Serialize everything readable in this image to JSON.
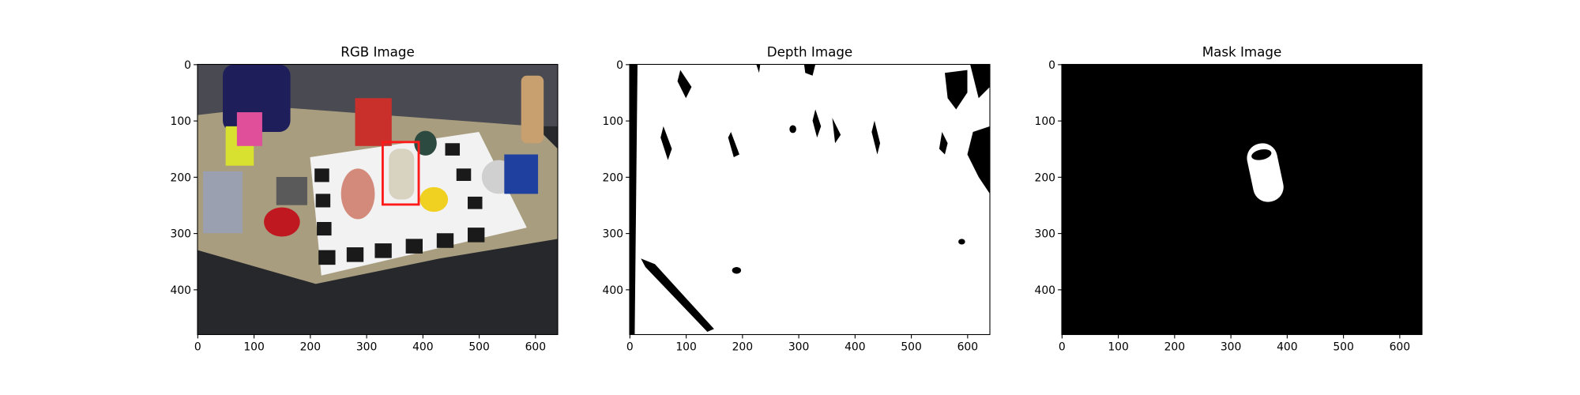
{
  "chart_data": [
    {
      "type": "image",
      "title": "RGB Image",
      "xlim": [
        -0.5,
        639.5
      ],
      "ylim": [
        479.5,
        -0.5
      ],
      "xticks": [
        0,
        100,
        200,
        300,
        400,
        500,
        600
      ],
      "yticks": [
        0,
        100,
        200,
        300,
        400
      ]
    },
    {
      "type": "image",
      "title": "Depth Image",
      "xlim": [
        -0.5,
        639.5
      ],
      "ylim": [
        479.5,
        -0.5
      ],
      "xticks": [
        0,
        100,
        200,
        300,
        400,
        500,
        600
      ],
      "yticks": [
        0,
        100,
        200,
        300,
        400
      ]
    },
    {
      "type": "image",
      "title": "Mask Image",
      "xlim": [
        -0.5,
        639.5
      ],
      "ylim": [
        479.5,
        -0.5
      ],
      "xticks": [
        0,
        100,
        200,
        300,
        400,
        500,
        600
      ],
      "yticks": [
        0,
        100,
        200,
        300,
        400
      ]
    }
  ]
}
